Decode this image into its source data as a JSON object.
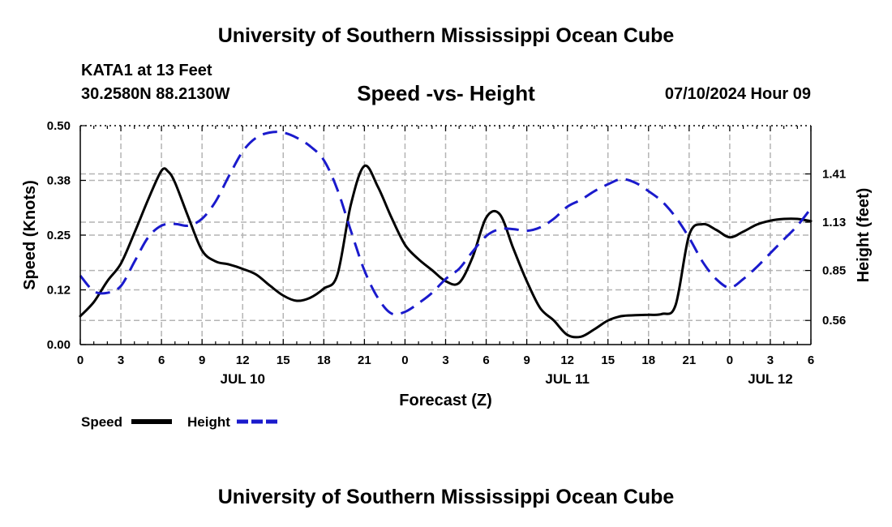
{
  "header": {
    "title": "University of Southern Mississippi Ocean Cube",
    "station": "KATA1 at 13 Feet",
    "coords": "30.2580N  88.2130W",
    "subtitle": "Speed -vs- Height",
    "datetime": "07/10/2024 Hour 09"
  },
  "footer": {
    "title": "University of Southern Mississippi Ocean Cube"
  },
  "colors": {
    "speed": "#000000",
    "height": "#1a1acc",
    "grid": "#b4b4b4"
  },
  "chart_data": {
    "type": "line",
    "xlabel": "Forecast (Z)",
    "ylabel": "Speed (Knots)",
    "y2label": "Height (feet)",
    "x_hours_range": [
      0,
      54
    ],
    "x_tick_hours": [
      0,
      3,
      6,
      9,
      12,
      15,
      18,
      21,
      24,
      27,
      30,
      33,
      36,
      39,
      42,
      45,
      48,
      51,
      54
    ],
    "x_tick_labels": [
      "0",
      "3",
      "6",
      "9",
      "12",
      "15",
      "18",
      "21",
      "0",
      "3",
      "6",
      "9",
      "12",
      "15",
      "18",
      "21",
      "0",
      "3",
      "6"
    ],
    "date_labels": [
      {
        "hour": 12,
        "label": "JUL 10"
      },
      {
        "hour": 36,
        "label": "JUL 11"
      },
      {
        "hour": 51,
        "label": "JUL 12"
      }
    ],
    "ylim": [
      0,
      0.5
    ],
    "y_ticks": [
      0.0,
      0.125,
      0.25,
      0.375,
      0.5
    ],
    "y_tick_labels": [
      "0.00",
      "0.12",
      "0.25",
      "0.38",
      "0.50"
    ],
    "y2lim": [
      0.42,
      1.69
    ],
    "y2_ticks": [
      0.56,
      0.85,
      1.13,
      1.41
    ],
    "y2_tick_labels": [
      "0.56",
      "0.85",
      "1.13",
      "1.41"
    ],
    "grid": true,
    "legend": {
      "position": "bottom-left",
      "entries": [
        "Speed",
        "Height"
      ]
    },
    "series": [
      {
        "name": "Speed",
        "axis": "left",
        "x": [
          0,
          1,
          2,
          3,
          4,
          5,
          6,
          6.5,
          7,
          8,
          9,
          10,
          11,
          12,
          13,
          14,
          15,
          16,
          17,
          18,
          19,
          20,
          21,
          22,
          23,
          24,
          25,
          26,
          27,
          28,
          29,
          30,
          31,
          32,
          33,
          34,
          35,
          36,
          37,
          38,
          39,
          40,
          41,
          42,
          43,
          44,
          45,
          46,
          47,
          48,
          49,
          50,
          51,
          52,
          53,
          54
        ],
        "values": [
          0.065,
          0.097,
          0.145,
          0.185,
          0.255,
          0.33,
          0.397,
          0.395,
          0.37,
          0.29,
          0.215,
          0.19,
          0.183,
          0.173,
          0.16,
          0.135,
          0.112,
          0.1,
          0.107,
          0.128,
          0.159,
          0.32,
          0.408,
          0.36,
          0.29,
          0.228,
          0.195,
          0.17,
          0.145,
          0.141,
          0.2,
          0.29,
          0.298,
          0.22,
          0.145,
          0.083,
          0.055,
          0.022,
          0.018,
          0.035,
          0.055,
          0.065,
          0.067,
          0.068,
          0.07,
          0.09,
          0.25,
          0.275,
          0.262,
          0.245,
          0.258,
          0.274,
          0.283,
          0.287,
          0.287,
          0.282
        ]
      },
      {
        "name": "Height",
        "axis": "right",
        "x": [
          0,
          1,
          2,
          3,
          4,
          5,
          6,
          7,
          8,
          9,
          10,
          11,
          12,
          13,
          14,
          15,
          16,
          17,
          18,
          19,
          20,
          21,
          22,
          23,
          24,
          25,
          26,
          27,
          28,
          29,
          30,
          31,
          32,
          33,
          34,
          35,
          36,
          37,
          38,
          39,
          40,
          41,
          42,
          43,
          44,
          45,
          46,
          47,
          48,
          49,
          50,
          51,
          52,
          53,
          54
        ],
        "values": [
          0.82,
          0.73,
          0.72,
          0.76,
          0.9,
          1.04,
          1.11,
          1.12,
          1.11,
          1.15,
          1.25,
          1.4,
          1.54,
          1.62,
          1.65,
          1.65,
          1.62,
          1.57,
          1.49,
          1.32,
          1.08,
          0.85,
          0.69,
          0.6,
          0.61,
          0.66,
          0.72,
          0.8,
          0.86,
          0.96,
          1.05,
          1.09,
          1.09,
          1.08,
          1.1,
          1.15,
          1.22,
          1.26,
          1.31,
          1.35,
          1.38,
          1.36,
          1.31,
          1.25,
          1.16,
          1.04,
          0.9,
          0.8,
          0.75,
          0.8,
          0.87,
          0.95,
          1.03,
          1.11,
          1.21
        ]
      }
    ]
  }
}
